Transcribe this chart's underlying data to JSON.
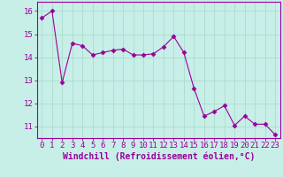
{
  "x": [
    0,
    1,
    2,
    3,
    4,
    5,
    6,
    7,
    8,
    9,
    10,
    11,
    12,
    13,
    14,
    15,
    16,
    17,
    18,
    19,
    20,
    21,
    22,
    23
  ],
  "y": [
    15.7,
    16.0,
    12.9,
    14.6,
    14.5,
    14.1,
    14.2,
    14.3,
    14.35,
    14.1,
    14.1,
    14.15,
    14.45,
    14.9,
    14.2,
    12.65,
    11.45,
    11.65,
    11.9,
    11.05,
    11.45,
    11.1,
    11.1,
    10.65
  ],
  "line_color": "#990099",
  "marker": "D",
  "marker_size": 2.5,
  "background_color": "#c8eee8",
  "grid_color": "#aaddcc",
  "xlabel": "Windchill (Refroidissement éolien,°C)",
  "ylabel": "",
  "ylim": [
    10.5,
    16.4
  ],
  "xlim": [
    -0.5,
    23.5
  ],
  "yticks": [
    11,
    12,
    13,
    14,
    15,
    16
  ],
  "xticks": [
    0,
    1,
    2,
    3,
    4,
    5,
    6,
    7,
    8,
    9,
    10,
    11,
    12,
    13,
    14,
    15,
    16,
    17,
    18,
    19,
    20,
    21,
    22,
    23
  ],
  "tick_label_fontsize": 6.5,
  "xlabel_fontsize": 7,
  "tick_color": "#990099",
  "label_color": "#990099",
  "spine_color": "#990099"
}
